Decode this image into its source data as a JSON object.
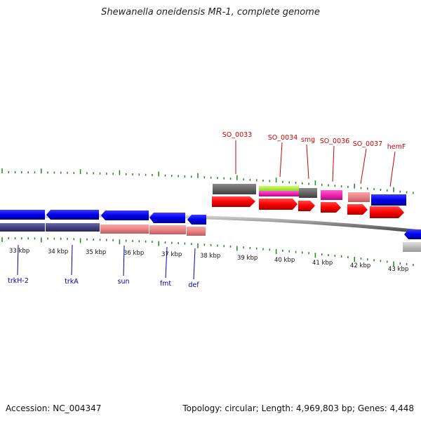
{
  "title": "Shewanella oneidensis MR-1, complete genome",
  "footer": {
    "accession": "Accession: NC_004347",
    "summary": "Topology: circular; Length: 4,969,803 bp; Genes: 4,448"
  },
  "colors": {
    "top_label": "#cc0000",
    "bottom_label": "#0000aa",
    "tick": "#1a8a1a",
    "backbone": "#777777"
  },
  "scale_labels": [
    "33 kbp",
    "34 kbp",
    "35 kbp",
    "36 kbp",
    "37 kbp",
    "38 kbp",
    "39 kbp",
    "40 kbp",
    "41 kbp",
    "42 kbp",
    "43 kbp"
  ],
  "top_genes": [
    "SO_0033",
    "SO_0034",
    "smg",
    "SO_0036",
    "SO_0037",
    "hemF"
  ],
  "bottom_genes": [
    "trkH-2",
    "trkA",
    "sun",
    "fmt",
    "def"
  ]
}
